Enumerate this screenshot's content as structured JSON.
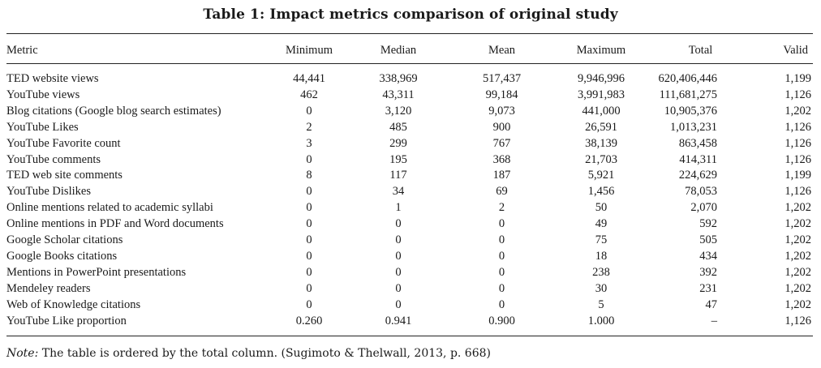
{
  "caption": "Table 1: Impact metrics comparison of original study",
  "headers": {
    "metric": "Metric",
    "minimum": "Minimum",
    "median": "Median",
    "mean": "Mean",
    "maximum": "Maximum",
    "total": "Total",
    "valid": "Valid"
  },
  "rows": [
    {
      "metric": "TED website views",
      "minimum": "44,441",
      "median": "338,969",
      "mean": "517,437",
      "maximum": "9,946,996",
      "total": "620,406,446",
      "valid": "1,199"
    },
    {
      "metric": "YouTube views",
      "minimum": "462",
      "median": "43,311",
      "mean": "99,184",
      "maximum": "3,991,983",
      "total": "111,681,275",
      "valid": "1,126"
    },
    {
      "metric": "Blog citations (Google blog search estimates)",
      "minimum": "0",
      "median": "3,120",
      "mean": "9,073",
      "maximum": "441,000",
      "total": "10,905,376",
      "valid": "1,202"
    },
    {
      "metric": "YouTube Likes",
      "minimum": "2",
      "median": "485",
      "mean": "900",
      "maximum": "26,591",
      "total": "1,013,231",
      "valid": "1,126"
    },
    {
      "metric": "YouTube Favorite count",
      "minimum": "3",
      "median": "299",
      "mean": "767",
      "maximum": "38,139",
      "total": "863,458",
      "valid": "1,126"
    },
    {
      "metric": "YouTube comments",
      "minimum": "0",
      "median": "195",
      "mean": "368",
      "maximum": "21,703",
      "total": "414,311",
      "valid": "1,126"
    },
    {
      "metric": "TED web site comments",
      "minimum": "8",
      "median": "117",
      "mean": "187",
      "maximum": "5,921",
      "total": "224,629",
      "valid": "1,199"
    },
    {
      "metric": "YouTube Dislikes",
      "minimum": "0",
      "median": "34",
      "mean": "69",
      "maximum": "1,456",
      "total": "78,053",
      "valid": "1,126"
    },
    {
      "metric": "Online mentions related to academic syllabi",
      "minimum": "0",
      "median": "1",
      "mean": "2",
      "maximum": "50",
      "total": "2,070",
      "valid": "1,202"
    },
    {
      "metric": "Online mentions in PDF and Word documents",
      "minimum": "0",
      "median": "0",
      "mean": "0",
      "maximum": "49",
      "total": "592",
      "valid": "1,202"
    },
    {
      "metric": "Google Scholar citations",
      "minimum": "0",
      "median": "0",
      "mean": "0",
      "maximum": "75",
      "total": "505",
      "valid": "1,202"
    },
    {
      "metric": "Google Books citations",
      "minimum": "0",
      "median": "0",
      "mean": "0",
      "maximum": "18",
      "total": "434",
      "valid": "1,202"
    },
    {
      "metric": "Mentions in PowerPoint presentations",
      "minimum": "0",
      "median": "0",
      "mean": "0",
      "maximum": "238",
      "total": "392",
      "valid": "1,202"
    },
    {
      "metric": "Mendeley readers",
      "minimum": "0",
      "median": "0",
      "mean": "0",
      "maximum": "30",
      "total": "231",
      "valid": "1,202"
    },
    {
      "metric": "Web of Knowledge citations",
      "minimum": "0",
      "median": "0",
      "mean": "0",
      "maximum": "5",
      "total": "47",
      "valid": "1,202"
    },
    {
      "metric": "YouTube Like proportion",
      "minimum": "0.260",
      "median": "0.941",
      "mean": "0.900",
      "maximum": "1.000",
      "total": "–",
      "valid": "1,126"
    }
  ],
  "note": {
    "label": "Note:",
    "text": " The table is ordered by the total column. (Sugimoto & Thelwall, 2013, p. 668)"
  }
}
